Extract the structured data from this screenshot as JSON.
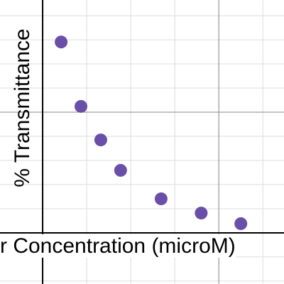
{
  "chart_data": {
    "type": "scatter",
    "x_label": "r Concentration (microM)",
    "y_label": "% Transmittance",
    "x": [
      0.42,
      0.87,
      1.32,
      1.77,
      2.69,
      3.6,
      4.5
    ],
    "values": [
      7.91,
      5.24,
      3.85,
      2.59,
      1.41,
      0.82,
      0.38
    ],
    "color": "#6a4fa8",
    "xlim": [
      -0.968,
      5.48
    ],
    "ylim": [
      -2.12,
      9.65
    ],
    "xticks": [
      1,
      2,
      3,
      4,
      5
    ],
    "yticks": [
      -2,
      -1,
      1,
      2,
      3,
      4,
      5,
      6,
      7,
      8,
      9
    ],
    "xmajor": [
      4
    ],
    "ymajor": [
      5
    ],
    "grid": true
  }
}
